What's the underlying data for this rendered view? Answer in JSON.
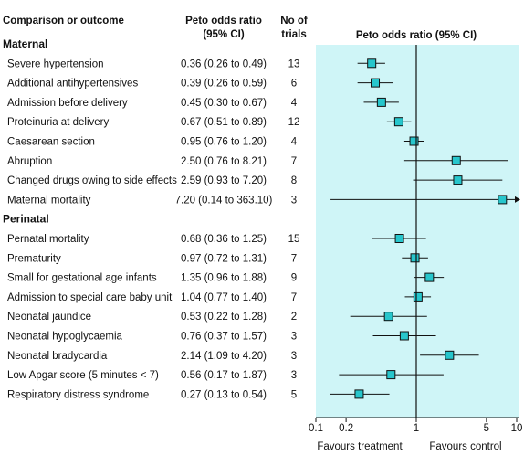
{
  "chart_data": {
    "type": "forest",
    "columns": {
      "label": "Comparison or outcome",
      "estimate_line1": "Peto odds ratio",
      "estimate_line2": "(95% CI)",
      "trials_line1": "No of",
      "trials_line2": "trials",
      "plot_title": "Peto odds ratio (95% CI)"
    },
    "sections": [
      {
        "name": "Maternal",
        "rows": [
          {
            "label": "Severe hypertension",
            "ci_text": "0.36 (0.26 to 0.49)",
            "trials": "13",
            "or": 0.36,
            "lo": 0.26,
            "hi": 0.49
          },
          {
            "label": "Additional antihypertensives",
            "ci_text": "0.39 (0.26 to 0.59)",
            "trials": "6",
            "or": 0.39,
            "lo": 0.26,
            "hi": 0.59
          },
          {
            "label": "Admission before delivery",
            "ci_text": "0.45 (0.30 to 0.67)",
            "trials": "4",
            "or": 0.45,
            "lo": 0.3,
            "hi": 0.67
          },
          {
            "label": "Proteinuria at delivery",
            "ci_text": "0.67 (0.51 to 0.89)",
            "trials": "12",
            "or": 0.67,
            "lo": 0.51,
            "hi": 0.89
          },
          {
            "label": "Caesarean section",
            "ci_text": "0.95 (0.76 to 1.20)",
            "trials": "4",
            "or": 0.95,
            "lo": 0.76,
            "hi": 1.2
          },
          {
            "label": "Abruption",
            "ci_text": "2.50 (0.76 to 8.21)",
            "trials": "7",
            "or": 2.5,
            "lo": 0.76,
            "hi": 8.21
          },
          {
            "label": "Changed drugs owing to side effects",
            "ci_text": "2.59 (0.93 to 7.20)",
            "trials": "8",
            "or": 2.59,
            "lo": 0.93,
            "hi": 7.2
          },
          {
            "label": "Maternal mortality",
            "ci_text": "7.20 (0.14 to 363.10)",
            "trials": "3",
            "or": 7.2,
            "lo": 0.14,
            "hi": 363.1
          }
        ]
      },
      {
        "name": "Perinatal",
        "rows": [
          {
            "label": "Pernatal mortality",
            "ci_text": "0.68 (0.36 to 1.25)",
            "trials": "15",
            "or": 0.68,
            "lo": 0.36,
            "hi": 1.25
          },
          {
            "label": "Prematurity",
            "ci_text": "0.97 (0.72 to 1.31)",
            "trials": "7",
            "or": 0.97,
            "lo": 0.72,
            "hi": 1.31
          },
          {
            "label": "Small for gestational age infants",
            "ci_text": "1.35 (0.96 to 1.88)",
            "trials": "9",
            "or": 1.35,
            "lo": 0.96,
            "hi": 1.88
          },
          {
            "label": "Admission to special care baby unit",
            "ci_text": "1.04 (0.77 to 1.40)",
            "trials": "7",
            "or": 1.04,
            "lo": 0.77,
            "hi": 1.4
          },
          {
            "label": "Neonatal jaundice",
            "ci_text": "0.53 (0.22 to 1.28)",
            "trials": "2",
            "or": 0.53,
            "lo": 0.22,
            "hi": 1.28
          },
          {
            "label": "Neonatal hypoglycaemia",
            "ci_text": "0.76 (0.37 to 1.57)",
            "trials": "3",
            "or": 0.76,
            "lo": 0.37,
            "hi": 1.57
          },
          {
            "label": "Neonatal bradycardia",
            "ci_text": "2.14 (1.09 to 4.20)",
            "trials": "3",
            "or": 2.14,
            "lo": 1.09,
            "hi": 4.2
          },
          {
            "label": "Low Apgar score (5 minutes < 7)",
            "ci_text": "0.56 (0.17 to 1.87)",
            "trials": "3",
            "or": 0.56,
            "lo": 0.17,
            "hi": 1.87
          },
          {
            "label": "Respiratory distress syndrome",
            "ci_text": "0.27 (0.13 to 0.54)",
            "trials": "5",
            "or": 0.27,
            "lo": 0.13,
            "hi": 0.54
          }
        ]
      }
    ],
    "x_axis": {
      "scale": "log",
      "range": [
        0.1,
        10
      ],
      "ticks": [
        0.1,
        0.2,
        1,
        5,
        10
      ],
      "tick_labels": [
        "0.1",
        "0.2",
        "1",
        "5",
        "10"
      ],
      "reference_line": 1
    },
    "footer": {
      "left": "Favours treatment",
      "right": "Favours control"
    },
    "colors": {
      "panel": "#cff5f7",
      "marker": "#27c6cc",
      "line": "#111111"
    }
  }
}
